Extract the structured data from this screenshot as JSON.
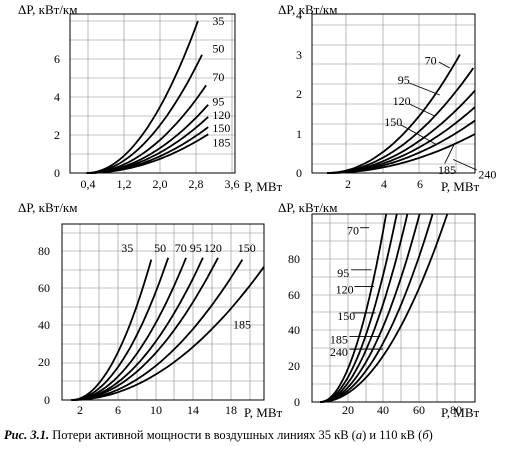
{
  "caption": {
    "label": "Рис. 3.1.",
    "text_main": " Потери активной мощности в воздушных линиях 35 кВ (",
    "sub_a": "а",
    "text_mid": ") и 110 кВ (",
    "sub_b": "б",
    "text_end": ")"
  },
  "chart_data": [
    {
      "type": "line",
      "panel": "top-left",
      "ylabel": "ΔP, кВт/км",
      "xlabel": "P, МВт",
      "xticks": [
        "0,4",
        "1,2",
        "2,0",
        "2,8",
        "3,6"
      ],
      "yticks": [
        "0",
        "2",
        "4",
        "6"
      ],
      "xlim": [
        0,
        4.0
      ],
      "ylim": [
        0,
        7.8
      ],
      "grid": true,
      "curve_start_x": 0.4,
      "series": [
        {
          "name": "35",
          "x": [
            3.1
          ],
          "y": [
            7.45
          ]
        },
        {
          "name": "50",
          "x": [
            3.2
          ],
          "y": [
            5.8
          ]
        },
        {
          "name": "70",
          "x": [
            3.3
          ],
          "y": [
            4.3
          ]
        },
        {
          "name": "95",
          "x": [
            3.35
          ],
          "y": [
            3.35
          ]
        },
        {
          "name": "120",
          "x": [
            3.35
          ],
          "y": [
            2.75
          ]
        },
        {
          "name": "150",
          "x": [
            3.35
          ],
          "y": [
            2.25
          ]
        },
        {
          "name": "185",
          "x": [
            3.35
          ],
          "y": [
            1.9
          ]
        }
      ],
      "labels": [
        {
          "text": "35",
          "x": 3.45,
          "y": 7.45
        },
        {
          "text": "50",
          "x": 3.45,
          "y": 6.1
        },
        {
          "text": "70",
          "x": 3.45,
          "y": 4.7
        },
        {
          "text": "95",
          "x": 3.45,
          "y": 3.5
        },
        {
          "text": "120",
          "x": 3.45,
          "y": 2.85
        },
        {
          "text": "150",
          "x": 3.45,
          "y": 2.2
        },
        {
          "text": "185",
          "x": 3.45,
          "y": 1.5
        }
      ]
    },
    {
      "type": "line",
      "panel": "top-right",
      "ylabel": "ΔP, кВт/км",
      "xlabel": "P, МВт",
      "xticks": [
        "2",
        "4",
        "6"
      ],
      "yticks": [
        "0",
        "1",
        "2",
        "3",
        "4"
      ],
      "xlim": [
        0,
        9.7
      ],
      "ylim": [
        0,
        5.3
      ],
      "grid": true,
      "curve_start_x": 0.9,
      "series": [
        {
          "name": "70",
          "x": [
            8.8
          ],
          "y": [
            3.95
          ]
        },
        {
          "name": "95",
          "x": [
            9.6
          ],
          "y": [
            3.5
          ]
        },
        {
          "name": "120",
          "x": [
            9.7
          ],
          "y": [
            2.75
          ]
        },
        {
          "name": "150",
          "x": [
            9.7
          ],
          "y": [
            2.2
          ]
        },
        {
          "name": "185",
          "x": [
            9.7
          ],
          "y": [
            1.75
          ]
        },
        {
          "name": "240",
          "x": [
            9.7
          ],
          "y": [
            1.3
          ]
        }
      ],
      "labels": [
        {
          "text": "70",
          "x": 6.7,
          "y": 3.75
        },
        {
          "text": "95",
          "x": 5.1,
          "y": 3.1
        },
        {
          "text": "120",
          "x": 4.8,
          "y": 2.4
        },
        {
          "text": "150",
          "x": 4.3,
          "y": 1.7
        },
        {
          "text": "185",
          "x": 7.5,
          "y": 0.1
        },
        {
          "text": "240",
          "x": 9.9,
          "y": -0.05
        }
      ],
      "leaders": [
        {
          "from": [
            7.55,
            3.7
          ],
          "to": [
            8.2,
            3.5
          ]
        },
        {
          "from": [
            5.8,
            3.0
          ],
          "to": [
            7.6,
            2.6
          ]
        },
        {
          "from": [
            5.8,
            2.3
          ],
          "to": [
            7.3,
            1.9
          ]
        },
        {
          "from": [
            5.3,
            1.6
          ],
          "to": [
            7.4,
            0.95
          ]
        },
        {
          "from": [
            7.9,
            0.32
          ],
          "to": [
            8.5,
            1.0
          ]
        },
        {
          "from": [
            9.8,
            0.1
          ],
          "to": [
            8.4,
            0.45
          ]
        }
      ]
    },
    {
      "type": "line",
      "panel": "bottom-left",
      "ylabel": "ΔP, кВт/км",
      "xlabel": "P, МВт",
      "xticks": [
        "2",
        "6",
        "10",
        "14",
        "18"
      ],
      "yticks": [
        "0",
        "20",
        "40",
        "60",
        "80"
      ],
      "xlim": [
        0,
        21.5
      ],
      "ylim": [
        0,
        99
      ],
      "grid": true,
      "curve_start_x": 1.0,
      "series": [
        {
          "name": "35",
          "x": [
            9.5
          ],
          "y": [
            79
          ]
        },
        {
          "name": "50",
          "x": [
            11.3
          ],
          "y": [
            80
          ]
        },
        {
          "name": "70",
          "x": [
            13.2
          ],
          "y": [
            80
          ]
        },
        {
          "name": "95",
          "x": [
            15.0
          ],
          "y": [
            80
          ]
        },
        {
          "name": "120",
          "x": [
            16.6
          ],
          "y": [
            80
          ]
        },
        {
          "name": "150",
          "x": [
            19.2
          ],
          "y": [
            79
          ]
        },
        {
          "name": "185",
          "x": [
            21.5
          ],
          "y": [
            75
          ]
        }
      ],
      "labels": [
        {
          "text": "35",
          "x": 6.3,
          "y": 85.5
        },
        {
          "text": "50",
          "x": 9.8,
          "y": 85.5
        },
        {
          "text": "70",
          "x": 12.0,
          "y": 85.5
        },
        {
          "text": "95",
          "x": 13.6,
          "y": 85.5
        },
        {
          "text": "120",
          "x": 15.1,
          "y": 85.5
        },
        {
          "text": "150",
          "x": 18.7,
          "y": 85.5
        },
        {
          "text": "185",
          "x": 18.2,
          "y": 42.5
        }
      ]
    },
    {
      "type": "line",
      "panel": "bottom-right",
      "ylabel": "ΔP, кВт/км",
      "xlabel": "P, МВт",
      "xticks": [
        "20",
        "40",
        "60",
        "80"
      ],
      "yticks": [
        "0",
        "20",
        "40",
        "60",
        "80"
      ],
      "xlim": [
        0,
        100
      ],
      "ylim": [
        0,
        96
      ],
      "grid": true,
      "curve_start_x": 5,
      "series": [
        {
          "name": "70",
          "x": [
            45.5
          ],
          "y": [
            96
          ]
        },
        {
          "name": "95",
          "x": [
            52
          ],
          "y": [
            96
          ]
        },
        {
          "name": "120",
          "x": [
            58.5
          ],
          "y": [
            96
          ]
        },
        {
          "name": "150",
          "x": [
            66
          ],
          "y": [
            96
          ]
        },
        {
          "name": "185",
          "x": [
            74
          ],
          "y": [
            96
          ]
        },
        {
          "name": "240",
          "x": [
            83
          ],
          "y": [
            96
          ]
        }
      ],
      "labels": [
        {
          "text": "70",
          "x": 21.5,
          "y": 87.5
        },
        {
          "text": "95",
          "x": 15.5,
          "y": 66
        },
        {
          "text": "120",
          "x": 14.5,
          "y": 57.5
        },
        {
          "text": "150",
          "x": 15.5,
          "y": 44
        },
        {
          "text": "185",
          "x": 11,
          "y": 32
        },
        {
          "text": "240",
          "x": 11,
          "y": 25.5
        }
      ],
      "leaders": [
        {
          "from": [
            29.5,
            89
          ],
          "to": [
            35,
            89
          ]
        },
        {
          "from": [
            24,
            67.5
          ],
          "to": [
            36.5,
            67.5
          ]
        },
        {
          "from": [
            26,
            59
          ],
          "to": [
            38,
            59
          ]
        },
        {
          "from": [
            25,
            45.5
          ],
          "to": [
            39,
            45.5
          ]
        },
        {
          "from": [
            23,
            33.5
          ],
          "to": [
            42,
            33.5
          ]
        },
        {
          "from": [
            23,
            27
          ],
          "to": [
            43.5,
            27
          ]
        }
      ]
    }
  ]
}
